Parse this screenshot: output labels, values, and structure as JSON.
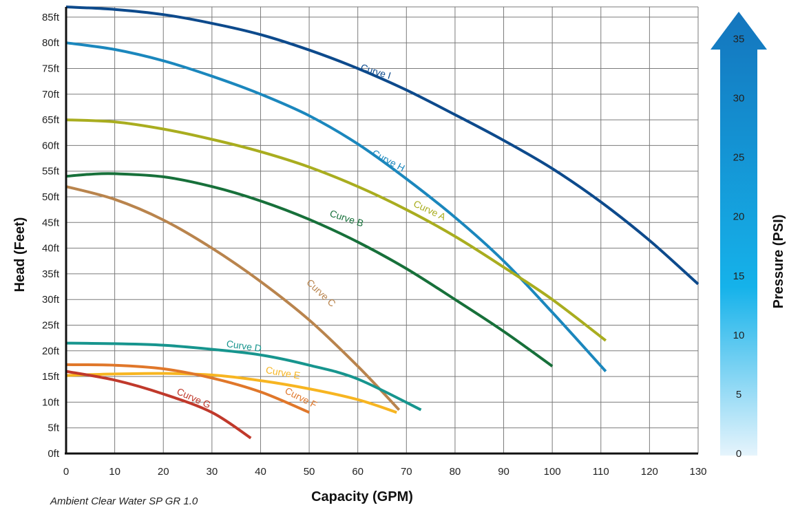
{
  "chart_data": {
    "type": "line",
    "xlabel": "Capacity (GPM)",
    "ylabel": "Head (Feet)",
    "y2label": "Pressure (PSI)",
    "note": "Ambient Clear Water SP GR 1.0",
    "xlim": [
      0,
      130
    ],
    "ylim": [
      0,
      87
    ],
    "x_ticks": [
      "0",
      "10",
      "20",
      "30",
      "40",
      "50",
      "60",
      "70",
      "80",
      "90",
      "100",
      "110",
      "120",
      "130"
    ],
    "y_ticks": [
      "0ft",
      "5ft",
      "10ft",
      "15ft",
      "20ft",
      "25ft",
      "30ft",
      "35ft",
      "40ft",
      "45ft",
      "50ft",
      "55ft",
      "60ft",
      "65ft",
      "70ft",
      "75ft",
      "80ft",
      "85ft"
    ],
    "psi_ticks": [
      "0",
      "5",
      "10",
      "15",
      "20",
      "25",
      "30",
      "35"
    ],
    "psi_lim": [
      0,
      37.7
    ],
    "grid": true,
    "series": [
      {
        "name": "Curve I",
        "color": "#0d4a8c",
        "x": [
          0,
          10,
          20,
          30,
          40,
          50,
          60,
          70,
          80,
          90,
          100,
          110,
          120,
          130
        ],
        "y": [
          87,
          86.5,
          85.5,
          83.8,
          81.6,
          78.6,
          75,
          70.8,
          66,
          61,
          55.5,
          49,
          41.5,
          33
        ]
      },
      {
        "name": "Curve H",
        "color": "#1b87bd",
        "x": [
          0,
          10,
          20,
          30,
          40,
          50,
          60,
          70,
          80,
          90,
          100,
          111
        ],
        "y": [
          80,
          78.7,
          76.5,
          73.5,
          70,
          65.8,
          60.3,
          53.5,
          46,
          37.5,
          27.5,
          16
        ]
      },
      {
        "name": "Curve A",
        "color": "#a9ad1f",
        "x": [
          0,
          10,
          20,
          30,
          40,
          50,
          60,
          70,
          80,
          90,
          100,
          111
        ],
        "y": [
          65,
          64.6,
          63.2,
          61.2,
          58.8,
          55.8,
          52,
          47.5,
          42.3,
          36.3,
          30,
          22
        ]
      },
      {
        "name": "Curve B",
        "color": "#17703a",
        "x": [
          0,
          5,
          10,
          20,
          30,
          40,
          50,
          60,
          70,
          80,
          90,
          100
        ],
        "y": [
          54,
          54.4,
          54.5,
          53.9,
          52,
          49.2,
          45.6,
          41.2,
          36,
          30,
          23.8,
          17
        ]
      },
      {
        "name": "Curve C",
        "color": "#b9844d",
        "x": [
          0,
          10,
          20,
          30,
          40,
          50,
          60,
          68.5
        ],
        "y": [
          52,
          49.5,
          45.5,
          40,
          33.5,
          26,
          17,
          8.5
        ]
      },
      {
        "name": "Curve D",
        "color": "#17958e",
        "x": [
          0,
          10,
          20,
          30,
          40,
          50,
          60,
          73
        ],
        "y": [
          21.5,
          21.4,
          21.1,
          20.3,
          19.2,
          17.2,
          14.5,
          8.5
        ]
      },
      {
        "name": "Curve E",
        "color": "#f7b521",
        "x": [
          0,
          10,
          20,
          30,
          40,
          50,
          60,
          68
        ],
        "y": [
          15.2,
          15.5,
          15.6,
          15.3,
          14.2,
          12.6,
          10.5,
          8
        ]
      },
      {
        "name": "Curve F",
        "color": "#e0772a",
        "x": [
          0,
          10,
          20,
          30,
          40,
          50
        ],
        "y": [
          17.3,
          17.2,
          16.5,
          14.7,
          12,
          8
        ]
      },
      {
        "name": "Curve G",
        "color": "#c0392b",
        "x": [
          0,
          10,
          20,
          30,
          38
        ],
        "y": [
          16,
          14.3,
          11.6,
          8,
          3
        ]
      }
    ],
    "labels": [
      {
        "text": "Curve I",
        "x": 63.5,
        "y": 73.8,
        "angle": 17,
        "color": "#0d4a8c"
      },
      {
        "text": "Curve H",
        "x": 66,
        "y": 56.5,
        "angle": 28,
        "color": "#1b87bd"
      },
      {
        "text": "Curve A",
        "x": 74.5,
        "y": 46.8,
        "angle": 25,
        "color": "#a9ad1f"
      },
      {
        "text": "Curve B",
        "x": 57.5,
        "y": 45.2,
        "angle": 18,
        "color": "#17703a"
      },
      {
        "text": "Curve C",
        "x": 52,
        "y": 30.8,
        "angle": 43,
        "color": "#b9844d"
      },
      {
        "text": "Curve D",
        "x": 36.5,
        "y": 20.3,
        "angle": 8,
        "color": "#17958e"
      },
      {
        "text": "Curve E",
        "x": 44.5,
        "y": 15.1,
        "angle": 10,
        "color": "#f7b521"
      },
      {
        "text": "Curve F",
        "x": 48,
        "y": 10.3,
        "angle": 27,
        "color": "#e0772a"
      },
      {
        "text": "Curve G",
        "x": 26,
        "y": 10.2,
        "angle": 24,
        "color": "#c0392b"
      }
    ]
  }
}
